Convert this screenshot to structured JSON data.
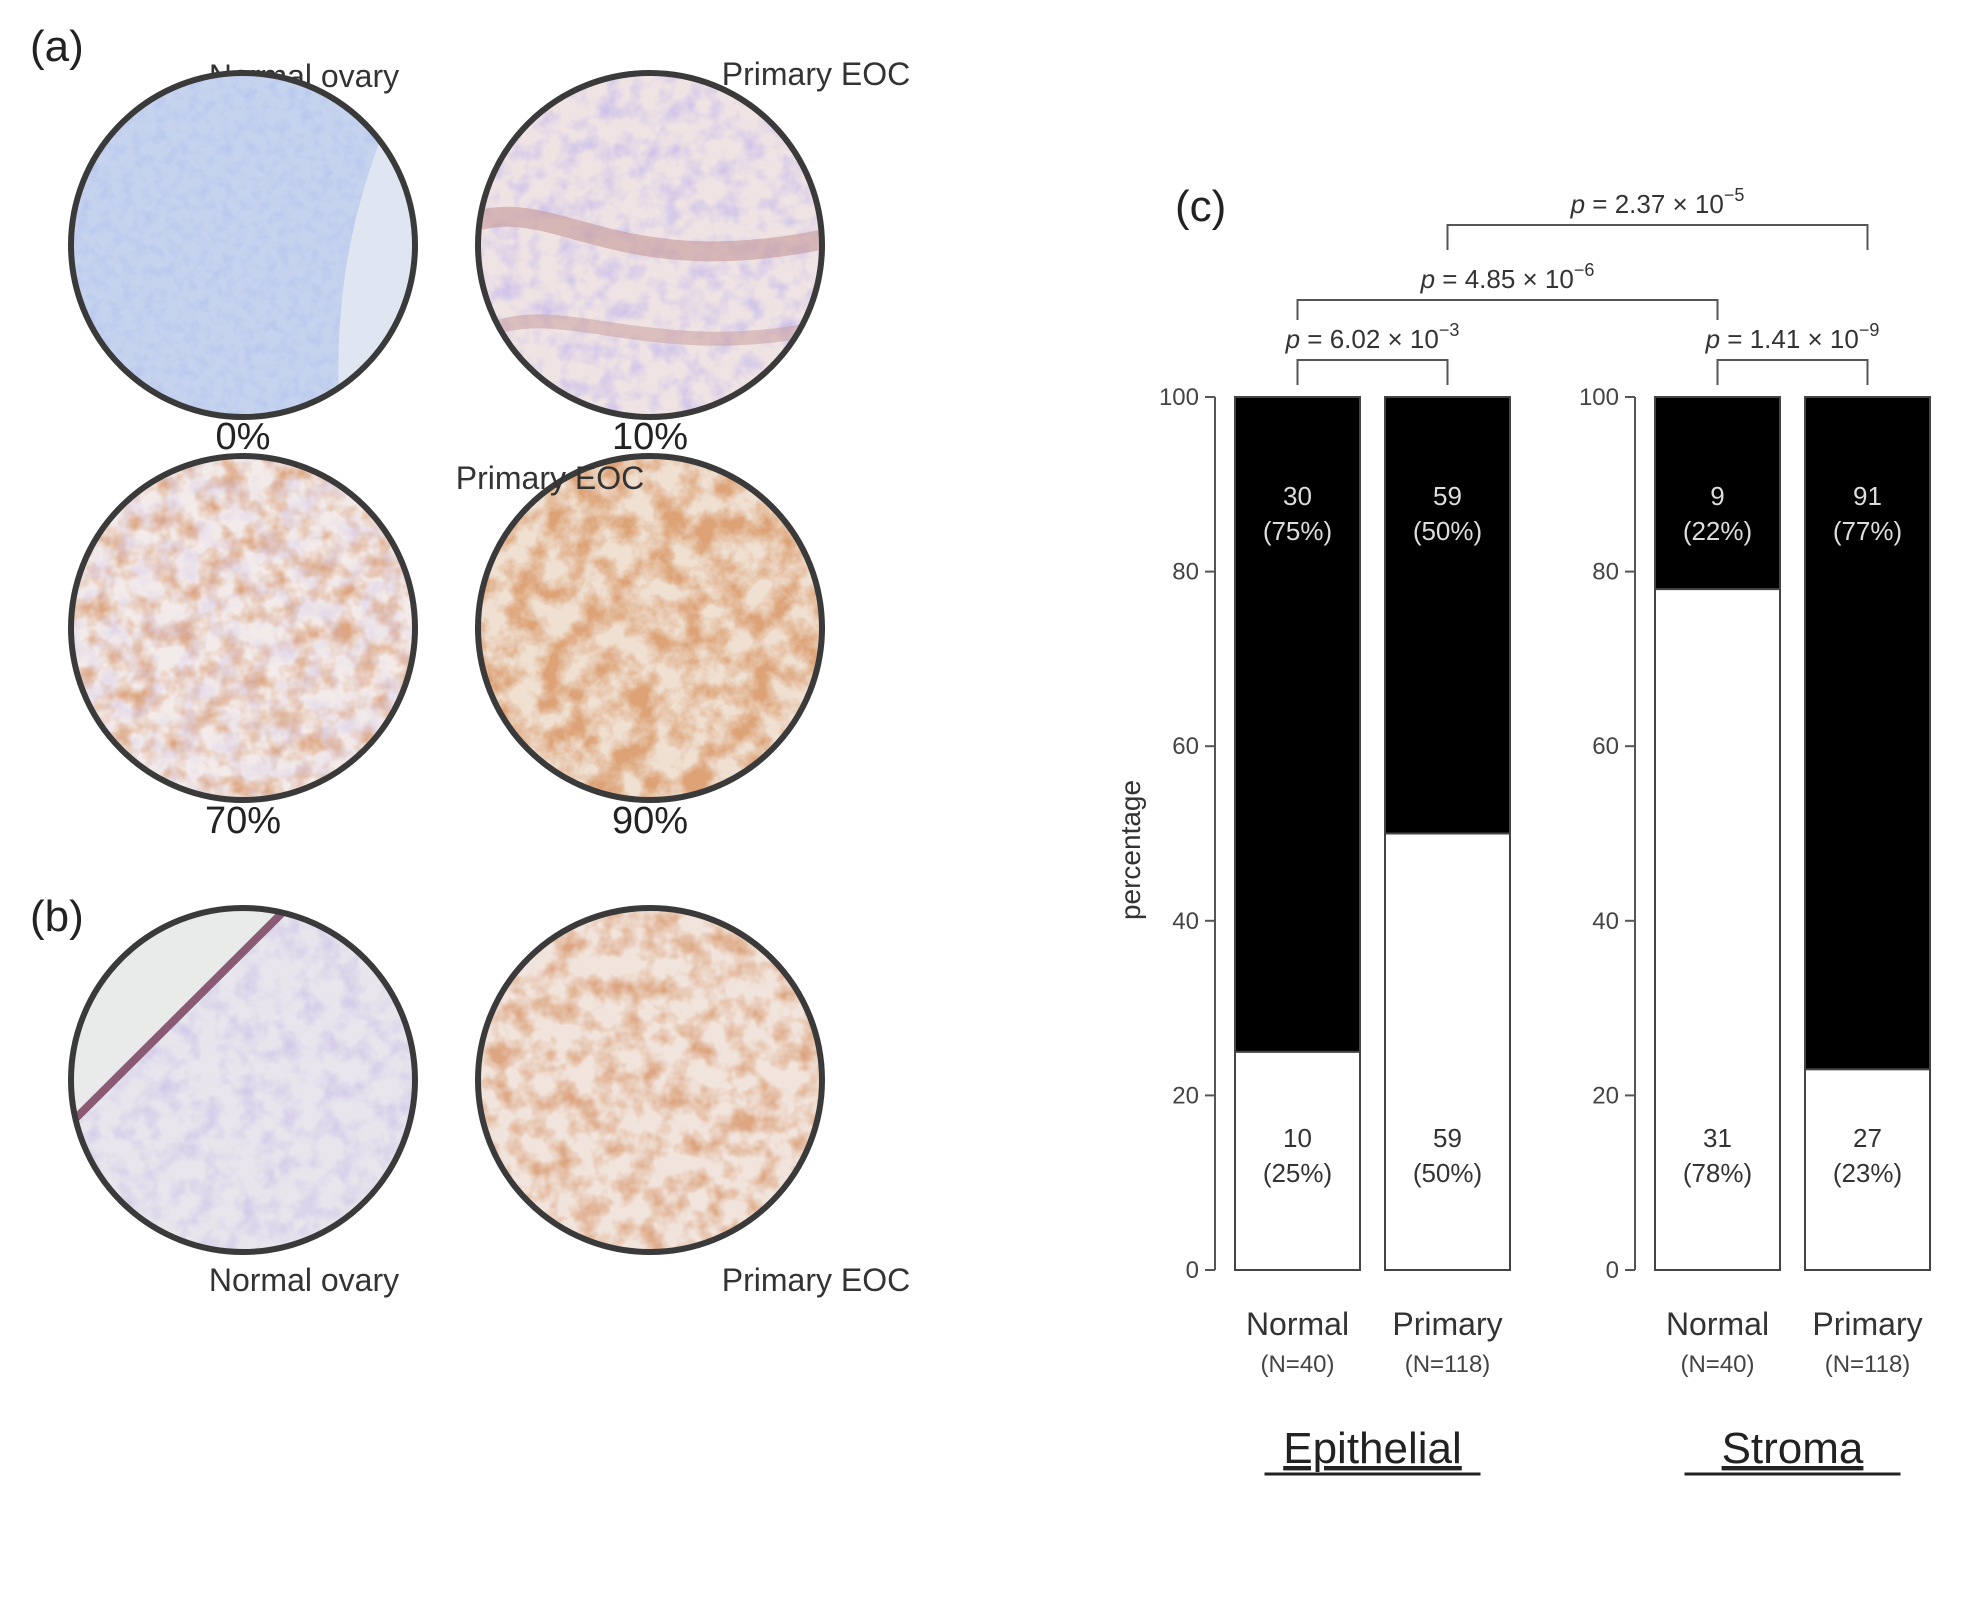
{
  "panel_a": {
    "letter": "(a)",
    "top_left_caption": "Normal ovary",
    "top_right_caption": "Primary EOC",
    "middle_caption": "Primary EOC",
    "images": [
      {
        "percent_label": "0%",
        "stain_level": 0.0
      },
      {
        "percent_label": "10%",
        "stain_level": 0.1
      },
      {
        "percent_label": "70%",
        "stain_level": 0.7
      },
      {
        "percent_label": "90%",
        "stain_level": 0.9
      }
    ]
  },
  "panel_b": {
    "letter": "(b)",
    "left_caption": "Normal ovary",
    "right_caption": "Primary EOC"
  },
  "chart_data": {
    "type": "bar",
    "stacked": true,
    "panel_letter": "(c)",
    "ylabel": "percentage",
    "ylim": [
      0,
      100
    ],
    "yticks": [
      0,
      20,
      40,
      60,
      80,
      100
    ],
    "groups": [
      {
        "name": "Epithelial",
        "bars": [
          {
            "label": "Normal",
            "n_label": "(N=40)",
            "positive_count": "30",
            "positive_pct": "(75%)",
            "positive_value": 75,
            "negative_count": "10",
            "negative_pct": "(25%)",
            "negative_value": 25
          },
          {
            "label": "Primary",
            "n_label": "(N=118)",
            "positive_count": "59",
            "positive_pct": "(50%)",
            "positive_value": 50,
            "negative_count": "59",
            "negative_pct": "(50%)",
            "negative_value": 50
          }
        ]
      },
      {
        "name": "Stroma",
        "bars": [
          {
            "label": "Normal",
            "n_label": "(N=40)",
            "positive_count": "9",
            "positive_pct": "(22%)",
            "positive_value": 22,
            "negative_count": "31",
            "negative_pct": "(78%)",
            "negative_value": 78
          },
          {
            "label": "Primary",
            "n_label": "(N=118)",
            "positive_count": "91",
            "positive_pct": "(77%)",
            "positive_value": 77,
            "negative_count": "27",
            "negative_pct": "(23%)",
            "negative_value": 23
          }
        ]
      }
    ],
    "colors": {
      "positive": "#000000",
      "negative": "#ffffff"
    },
    "comparisons": [
      {
        "label": "p = 6.02 × 10",
        "exponent": "−3",
        "between": [
          "Epithelial Normal",
          "Epithelial Primary"
        ]
      },
      {
        "label": "p = 1.41 × 10",
        "exponent": "−9",
        "between": [
          "Stroma Normal",
          "Stroma Primary"
        ]
      },
      {
        "label": "p = 4.85 × 10",
        "exponent": "−6",
        "between": [
          "Epithelial Normal",
          "Stroma Normal"
        ]
      },
      {
        "label": "p = 2.37 × 10",
        "exponent": "−5",
        "between": [
          "Epithelial Primary",
          "Stroma Primary"
        ]
      }
    ]
  }
}
